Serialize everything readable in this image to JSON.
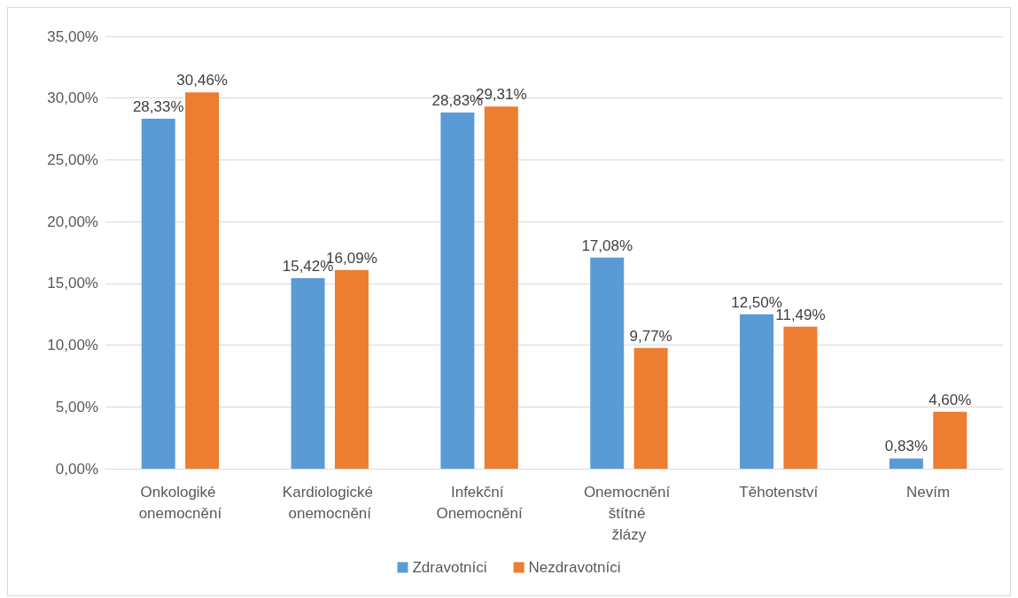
{
  "chart_data": {
    "type": "bar",
    "categories": [
      "Onkologiké onemocnění",
      "Kardiologické onemocnění",
      "Infekční Onemocnění",
      "Onemocnění štítné žlázy",
      "Těhotenství",
      "Nevím"
    ],
    "series": [
      {
        "name": "Zdravotníci",
        "color": "#5b9bd5",
        "values": [
          28.33,
          15.42,
          28.83,
          17.08,
          12.5,
          0.83
        ],
        "value_labels": [
          "28,33%",
          "15,42%",
          "28,83%",
          "17,08%",
          "12,50%",
          "0,83%"
        ]
      },
      {
        "name": "Nezdravotníci",
        "color": "#ed7d31",
        "values": [
          30.46,
          16.09,
          29.31,
          9.77,
          11.49,
          4.6
        ],
        "value_labels": [
          "30,46%",
          "16,09%",
          "29,31%",
          "9,77%",
          "11,49%",
          "4,60%"
        ]
      }
    ],
    "ylim": [
      0,
      35
    ],
    "yticks": [
      {
        "value": 0,
        "label": "0,00%"
      },
      {
        "value": 5,
        "label": "5,00%"
      },
      {
        "value": 10,
        "label": "10,00%"
      },
      {
        "value": 15,
        "label": "15,00%"
      },
      {
        "value": 20,
        "label": "20,00%"
      },
      {
        "value": 25,
        "label": "25,00%"
      },
      {
        "value": 30,
        "label": "30,00%"
      },
      {
        "value": 35,
        "label": "35,00%"
      }
    ],
    "grid": "y",
    "legend": "bottom"
  }
}
